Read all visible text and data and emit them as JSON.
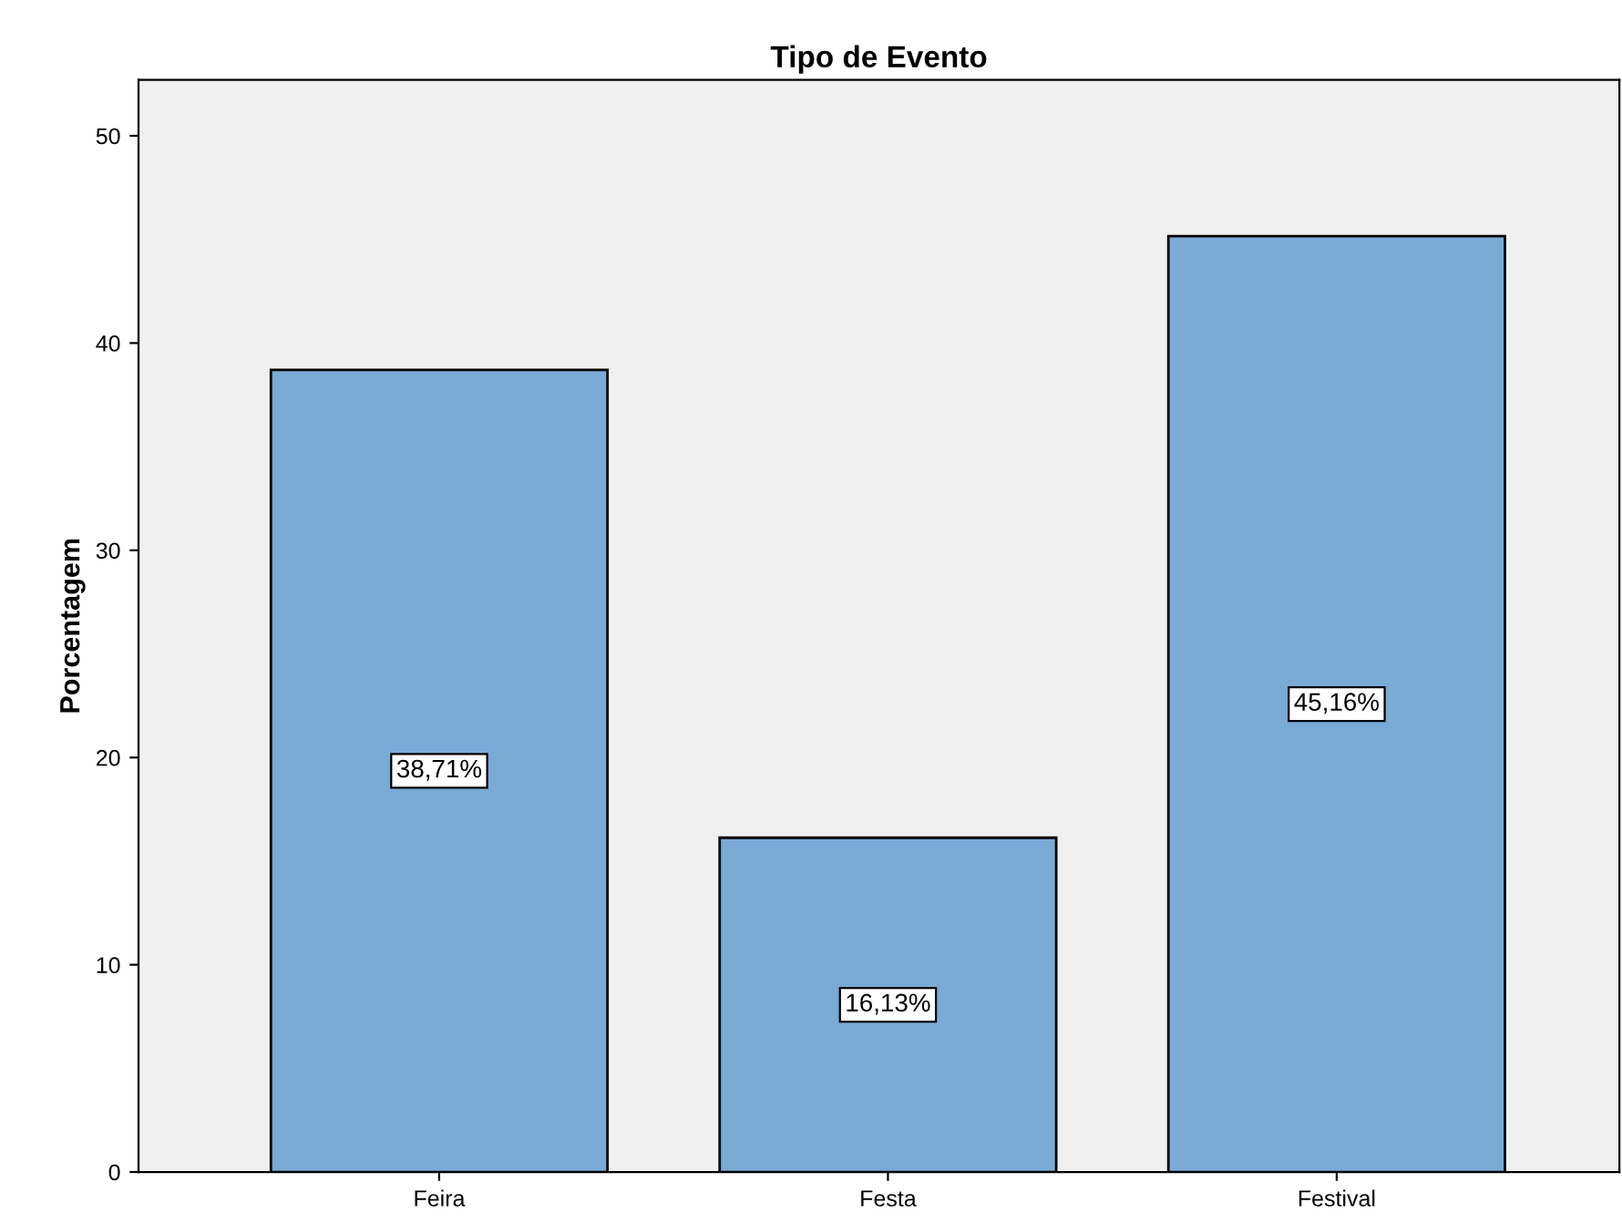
{
  "chart_data": {
    "type": "bar",
    "title": "Tipo de Evento",
    "ylabel": "Porcentagem",
    "categories": [
      "Feira",
      "Festa",
      "Festival"
    ],
    "values": [
      38.71,
      16.13,
      45.16
    ],
    "value_labels": [
      "38,71%",
      "16,13%",
      "45,16%"
    ],
    "color": "#7aaad6",
    "ylim": [
      0,
      52.7
    ],
    "yticks": [
      0,
      10,
      20,
      30,
      40,
      50
    ],
    "grid": false,
    "legend": false
  }
}
